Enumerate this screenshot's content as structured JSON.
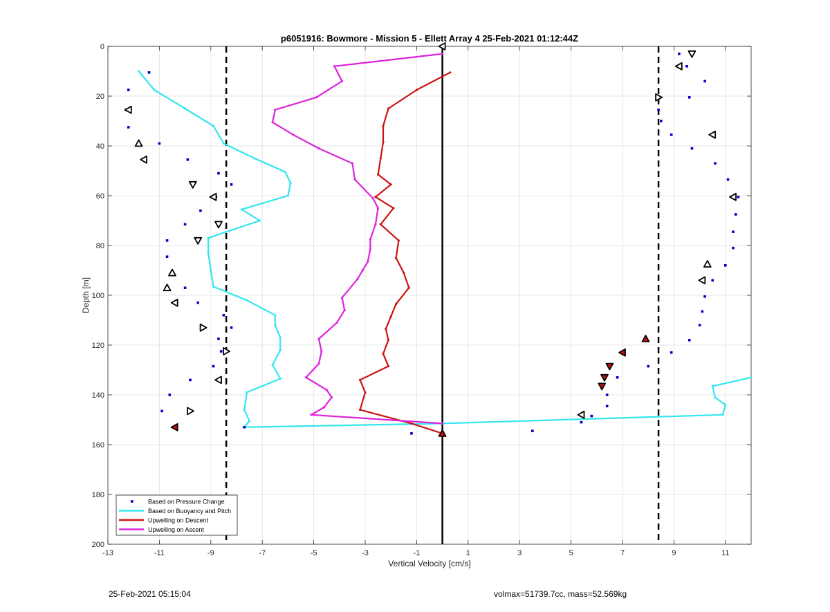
{
  "chart_data": {
    "type": "line",
    "title": "p6051916: Bowmore - Mission 5 - Ellett Array 4 25-Feb-2021 01:12:44Z",
    "xlabel": "Vertical Velocity [cm/s]",
    "ylabel": "Depth [m]",
    "xlim": [
      -13,
      12
    ],
    "ylim": [
      0,
      200
    ],
    "y_reversed": true,
    "grid": true,
    "legend_position": "bottom-left",
    "xticks": [
      -13,
      -11,
      -9,
      -7,
      -5,
      -3,
      -1,
      1,
      3,
      5,
      7,
      9,
      11
    ],
    "yticks": [
      0,
      20,
      40,
      60,
      80,
      100,
      120,
      140,
      160,
      180,
      200
    ],
    "colors": {
      "pressure": "#0000cc",
      "buoyancy": "#33e6ee",
      "descent": "#cc1111",
      "ascent": "#dd22dd",
      "markers": "#000000"
    },
    "vlines": [
      {
        "x": 0,
        "style": "solid"
      },
      {
        "x": -8.4,
        "style": "dashed"
      },
      {
        "x": 8.4,
        "style": "dashed"
      }
    ],
    "series": [
      {
        "name": "Based on Pressure Change",
        "kind": "scatter",
        "points": [
          [
            -11.4,
            10.5
          ],
          [
            -12.2,
            17.5
          ],
          [
            -12.3,
            25.5
          ],
          [
            -12.2,
            32.5
          ],
          [
            -11,
            39
          ],
          [
            -9.9,
            45.5
          ],
          [
            -8.7,
            51
          ],
          [
            -8.2,
            55.5
          ],
          [
            -8.8,
            60.5
          ],
          [
            -9.4,
            66
          ],
          [
            -10,
            71.5
          ],
          [
            -10.7,
            78
          ],
          [
            -10.7,
            84.5
          ],
          [
            -10.5,
            91
          ],
          [
            -10,
            97
          ],
          [
            -9.5,
            103
          ],
          [
            -8.5,
            108
          ],
          [
            -8.2,
            113
          ],
          [
            -8.7,
            117.5
          ],
          [
            -8.6,
            122.5
          ],
          [
            -8.9,
            128.5
          ],
          [
            -9.8,
            134
          ],
          [
            -10.6,
            140
          ],
          [
            -10.9,
            146.5
          ],
          [
            -10.4,
            153
          ],
          [
            -7.7,
            153
          ],
          [
            -1.2,
            155.5
          ],
          [
            3.5,
            154.5
          ],
          [
            5.4,
            151
          ],
          [
            5.8,
            148.5
          ],
          [
            6.4,
            144.5
          ],
          [
            6.4,
            140
          ],
          [
            6.8,
            133
          ],
          [
            8,
            128.5
          ],
          [
            8.9,
            123
          ],
          [
            9.6,
            118
          ],
          [
            10,
            112
          ],
          [
            10.1,
            106.5
          ],
          [
            10.2,
            100.5
          ],
          [
            10.5,
            94
          ],
          [
            11,
            88
          ],
          [
            11.3,
            81
          ],
          [
            11.3,
            74.5
          ],
          [
            11.4,
            67.5
          ],
          [
            11.5,
            60.5
          ],
          [
            11.1,
            53.5
          ],
          [
            10.6,
            47
          ],
          [
            9.7,
            41
          ],
          [
            8.9,
            35.5
          ],
          [
            8.5,
            30
          ],
          [
            8.4,
            25.5
          ],
          [
            9.6,
            20.5
          ],
          [
            10.2,
            14
          ],
          [
            9.5,
            8
          ],
          [
            9.2,
            3
          ]
        ]
      },
      {
        "name": "Based on Buoyancy and Pitch",
        "kind": "line",
        "points": [
          [
            -11.8,
            10
          ],
          [
            -11.2,
            17.5
          ],
          [
            -10,
            25
          ],
          [
            -8.9,
            32
          ],
          [
            -8.5,
            39
          ],
          [
            -7.3,
            45
          ],
          [
            -6.1,
            50.5
          ],
          [
            -5.9,
            55
          ],
          [
            -6,
            60
          ],
          [
            -7.8,
            65.5
          ],
          [
            -7.1,
            70
          ],
          [
            -9.1,
            77
          ],
          [
            -9.1,
            83
          ],
          [
            -9,
            90
          ],
          [
            -8.9,
            96.5
          ],
          [
            -7.6,
            102
          ],
          [
            -6.5,
            108
          ],
          [
            -6.5,
            112
          ],
          [
            -6.3,
            117
          ],
          [
            -6.3,
            122
          ],
          [
            -6.6,
            128
          ],
          [
            -6.3,
            133.5
          ],
          [
            -7.6,
            139
          ],
          [
            -7.7,
            146
          ],
          [
            -7.5,
            150.5
          ],
          [
            -7.7,
            153
          ],
          [
            0,
            151.5
          ],
          [
            10.9,
            148
          ],
          [
            11,
            144
          ],
          [
            10.6,
            141
          ],
          [
            10.5,
            136.5
          ],
          [
            12,
            133
          ]
        ]
      },
      {
        "name": "Upwelling on Descent",
        "kind": "line",
        "points": [
          [
            0.3,
            10.5
          ],
          [
            -1,
            17.5
          ],
          [
            -2.1,
            25
          ],
          [
            -2.3,
            32
          ],
          [
            -2.3,
            38.5
          ],
          [
            -2.4,
            45
          ],
          [
            -2.5,
            51.5
          ],
          [
            -2,
            55.5
          ],
          [
            -2.6,
            60.5
          ],
          [
            -1.9,
            65
          ],
          [
            -2.4,
            71.5
          ],
          [
            -1.7,
            78
          ],
          [
            -1.8,
            85
          ],
          [
            -1.5,
            91
          ],
          [
            -1.3,
            97
          ],
          [
            -1.8,
            103.5
          ],
          [
            -2,
            108.5
          ],
          [
            -2.2,
            113.5
          ],
          [
            -2.1,
            118
          ],
          [
            -2.3,
            123.5
          ],
          [
            -2.1,
            128.5
          ],
          [
            -3.2,
            134
          ],
          [
            -3,
            139
          ],
          [
            -3.2,
            146
          ],
          [
            -1.2,
            151.5
          ],
          [
            0,
            155.5
          ]
        ]
      },
      {
        "name": "Upwelling on Ascent",
        "kind": "line",
        "points": [
          [
            0,
            3
          ],
          [
            -4.2,
            8
          ],
          [
            -3.9,
            14
          ],
          [
            -4.9,
            20.5
          ],
          [
            -6.5,
            25.5
          ],
          [
            -6.6,
            30.5
          ],
          [
            -5.8,
            35.5
          ],
          [
            -4.8,
            41
          ],
          [
            -3.5,
            47
          ],
          [
            -3.4,
            53.5
          ],
          [
            -2.7,
            61
          ],
          [
            -2.5,
            65
          ],
          [
            -2.6,
            71.5
          ],
          [
            -2.8,
            77.5
          ],
          [
            -2.8,
            81.5
          ],
          [
            -2.9,
            86.5
          ],
          [
            -3.1,
            90
          ],
          [
            -3.3,
            93.5
          ],
          [
            -3.9,
            101
          ],
          [
            -3.8,
            106
          ],
          [
            -4.1,
            111
          ],
          [
            -4.8,
            117.5
          ],
          [
            -4.7,
            122.5
          ],
          [
            -4.8,
            127.5
          ],
          [
            -5.3,
            133
          ],
          [
            -4.5,
            138
          ],
          [
            -4.3,
            141
          ],
          [
            -4.6,
            145
          ],
          [
            -5.1,
            148
          ],
          [
            0,
            151.5
          ]
        ]
      }
    ],
    "triangle_markers": [
      {
        "x": 0,
        "y": 0,
        "dir": "left",
        "fill": "none"
      },
      {
        "x": 9.7,
        "y": 3,
        "dir": "down",
        "fill": "none"
      },
      {
        "x": 9.2,
        "y": 8,
        "dir": "left",
        "fill": "none"
      },
      {
        "x": 8.4,
        "y": 20.5,
        "dir": "right",
        "fill": "none"
      },
      {
        "x": -12.2,
        "y": 25.5,
        "dir": "left",
        "fill": "none"
      },
      {
        "x": 10.5,
        "y": 35.5,
        "dir": "left",
        "fill": "none"
      },
      {
        "x": -11.8,
        "y": 39,
        "dir": "up",
        "fill": "none"
      },
      {
        "x": -11.6,
        "y": 45.5,
        "dir": "left",
        "fill": "none"
      },
      {
        "x": -9.7,
        "y": 55.5,
        "dir": "down",
        "fill": "none"
      },
      {
        "x": -8.9,
        "y": 60.5,
        "dir": "left",
        "fill": "none"
      },
      {
        "x": 11.3,
        "y": 60.5,
        "dir": "left",
        "fill": "none"
      },
      {
        "x": -8.7,
        "y": 71.5,
        "dir": "down",
        "fill": "none"
      },
      {
        "x": -9.5,
        "y": 78,
        "dir": "down",
        "fill": "none"
      },
      {
        "x": 10.3,
        "y": 87.5,
        "dir": "up",
        "fill": "none"
      },
      {
        "x": -10.5,
        "y": 91,
        "dir": "up",
        "fill": "none"
      },
      {
        "x": 10.1,
        "y": 94,
        "dir": "left",
        "fill": "none"
      },
      {
        "x": -10.7,
        "y": 97,
        "dir": "up",
        "fill": "none"
      },
      {
        "x": -10.4,
        "y": 103,
        "dir": "left",
        "fill": "none"
      },
      {
        "x": -9.3,
        "y": 113,
        "dir": "right",
        "fill": "none"
      },
      {
        "x": 7.9,
        "y": 117.5,
        "dir": "up",
        "fill": "#cc1111"
      },
      {
        "x": -8.4,
        "y": 122.5,
        "dir": "right",
        "fill": "none"
      },
      {
        "x": 7,
        "y": 123,
        "dir": "left",
        "fill": "#cc1111"
      },
      {
        "x": 6.5,
        "y": 128.5,
        "dir": "down",
        "fill": "#cc1111"
      },
      {
        "x": 6.3,
        "y": 133,
        "dir": "down",
        "fill": "#cc1111"
      },
      {
        "x": -8.7,
        "y": 134,
        "dir": "left",
        "fill": "none"
      },
      {
        "x": 6.2,
        "y": 136.5,
        "dir": "down",
        "fill": "#cc1111"
      },
      {
        "x": -9.8,
        "y": 146.5,
        "dir": "right",
        "fill": "none"
      },
      {
        "x": 5.4,
        "y": 148,
        "dir": "left",
        "fill": "none"
      },
      {
        "x": -10.4,
        "y": 153,
        "dir": "left",
        "fill": "#cc1111"
      },
      {
        "x": 0,
        "y": 155.5,
        "dir": "up",
        "fill": "#cc1111"
      }
    ]
  },
  "footer": {
    "left": "25-Feb-2021 05:15:04",
    "right": "volmax=51739.7cc, mass=52.569kg"
  }
}
